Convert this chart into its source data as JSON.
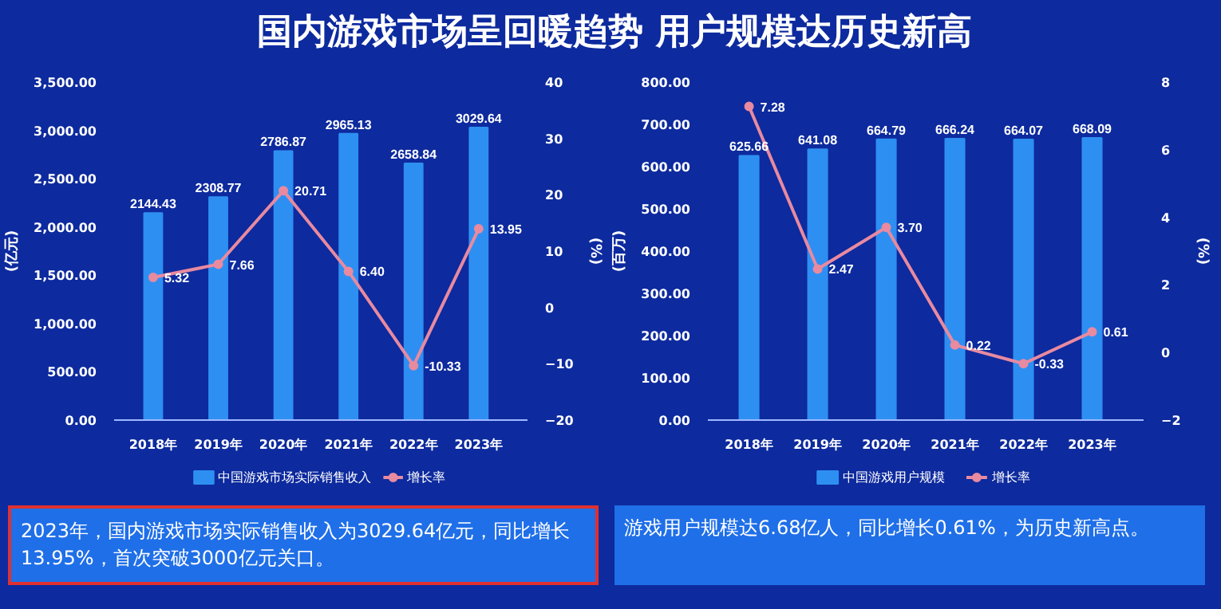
{
  "chart_data": [
    {
      "type": "bar",
      "title": "国内游戏市场呈回暖趋势 用户规模达历史新高",
      "categories": [
        "2018年",
        "2019年",
        "2020年",
        "2021年",
        "2022年",
        "2023年"
      ],
      "ylabel": "(亿元)",
      "y2label": "(%)",
      "series": [
        {
          "name": "中国游戏市场实际销售收入",
          "color": "#2e8ff2",
          "values": [
            2144.43,
            2308.77,
            2786.87,
            2965.13,
            2658.84,
            3029.64
          ],
          "value_labels": [
            "2144.43",
            "2308.77",
            "2786.87",
            "2965.13",
            "2658.84",
            "3029.64"
          ]
        },
        {
          "name": "增长率",
          "type": "line",
          "axis": "y2",
          "color": "#e88aa0",
          "marker": "circle",
          "values": [
            5.32,
            7.66,
            20.71,
            6.4,
            -10.33,
            13.95
          ],
          "value_labels": [
            "5.32",
            "7.66",
            "20.71",
            "6.40",
            "-10.33",
            "13.95"
          ]
        }
      ],
      "ylim": [
        0,
        3500
      ],
      "yticks": [
        {
          "value": 0,
          "label": "0.00"
        },
        {
          "value": 500,
          "label": "500.00"
        },
        {
          "value": 1000,
          "label": "1,000.00"
        },
        {
          "value": 1500,
          "label": "1,500.00"
        },
        {
          "value": 2000,
          "label": "2,000.00"
        },
        {
          "value": 2500,
          "label": "2,500.00"
        },
        {
          "value": 3000,
          "label": "3,000.00"
        },
        {
          "value": 3500,
          "label": "3,500.00"
        }
      ],
      "y2lim": [
        -20,
        40
      ],
      "y2ticks": [
        -20,
        -10,
        0,
        10,
        20,
        30,
        40
      ],
      "grid": false,
      "legend": "bottom",
      "annotations": [
        "2023年，国内游戏市场实际销售收入为3029.64亿元，同比增长13.95%，首次突破3000亿元关口。"
      ]
    },
    {
      "type": "bar",
      "categories": [
        "2018年",
        "2019年",
        "2020年",
        "2021年",
        "2022年",
        "2023年"
      ],
      "ylabel": "(百万)",
      "y2label": "(%)",
      "series": [
        {
          "name": "中国游戏用户规模",
          "color": "#2e8ff2",
          "values": [
            625.66,
            641.08,
            664.79,
            666.24,
            664.07,
            668.09
          ],
          "value_labels": [
            "625.66",
            "641.08",
            "664.79",
            "666.24",
            "664.07",
            "668.09"
          ]
        },
        {
          "name": "增长率",
          "type": "line",
          "axis": "y2",
          "color": "#e88aa0",
          "marker": "circle",
          "values": [
            7.28,
            2.47,
            3.7,
            0.22,
            -0.33,
            0.61
          ],
          "value_labels": [
            "7.28",
            "2.47",
            "3.70",
            "0.22",
            "-0.33",
            "0.61"
          ]
        }
      ],
      "ylim": [
        0,
        800
      ],
      "yticks": [
        {
          "value": 0,
          "label": "0.00"
        },
        {
          "value": 100,
          "label": "100.00"
        },
        {
          "value": 200,
          "label": "200.00"
        },
        {
          "value": 300,
          "label": "300.00"
        },
        {
          "value": 400,
          "label": "400.00"
        },
        {
          "value": 500,
          "label": "500.00"
        },
        {
          "value": 600,
          "label": "600.00"
        },
        {
          "value": 700,
          "label": "700.00"
        },
        {
          "value": 800,
          "label": "800.00"
        }
      ],
      "y2lim": [
        -2,
        8
      ],
      "y2ticks": [
        -2,
        0,
        2,
        4,
        6,
        8
      ],
      "grid": false,
      "legend": "bottom",
      "annotations": [
        "游戏用户规模达6.68亿人，同比增长0.61%，为历史新高点。"
      ]
    }
  ]
}
